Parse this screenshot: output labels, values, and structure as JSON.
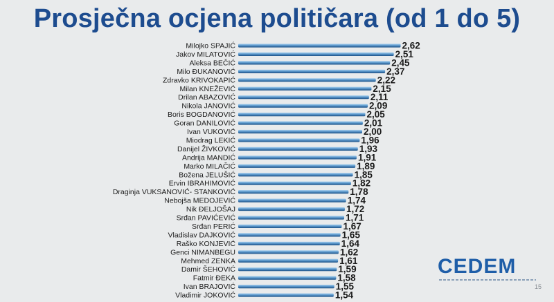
{
  "title": "Prosječna ocjena političara (od 1 do 5)",
  "logo_text": "CEDEM",
  "page_number": "15",
  "colors": {
    "title": "#1d4c8f",
    "bar_light": "#8fc0e6",
    "bar_dark": "#1e5d97",
    "background": "#e9ebec"
  },
  "chart_data": {
    "type": "bar",
    "orientation": "horizontal",
    "title": "Prosječna ocjena političara (od 1 do 5)",
    "categories": [
      "Milojko SPAJIĆ",
      "Jakov MILATOVIĆ",
      "Aleksa BEČIĆ",
      "Milo ĐUKANOVIĆ",
      "Zdravko KRIVOKAPIĆ",
      "Milan KNEŽEVIĆ",
      "Drilan ABAZOVIĆ",
      "Nikola JANOVIĆ",
      "Boris BOGDANOVIĆ",
      "Goran DANILOVIĆ",
      "Ivan VUKOVIĆ",
      "Miodrag LEKIĆ",
      "Danijel ŽIVKOVIĆ",
      "Andrija MANDIĆ",
      "Marko MILAČIĆ",
      "Božena JELUŠIĆ",
      "Ervin IBRAHIMOVIĆ",
      "Draginja VUKSANOVIĆ- STANKOVIĆ",
      "Nebojša MEDOJEVIĆ",
      "Nik ĐELJOŠAJ",
      "Srđan PAVIĆEVIĆ",
      "Srđan PERIĆ",
      "Vladislav DAJKOVIĆ",
      "Raško KONJEVIĆ",
      "Genci NIMANBEGU",
      "Mehmed ZENKA",
      "Damir ŠEHOVIĆ",
      "Fatmir ĐEKA",
      "Ivan BRAJOVIĆ",
      "Vladimir JOKOVIĆ"
    ],
    "values": [
      2.62,
      2.51,
      2.45,
      2.37,
      2.22,
      2.15,
      2.11,
      2.09,
      2.05,
      2.01,
      2.0,
      1.96,
      1.93,
      1.91,
      1.89,
      1.85,
      1.82,
      1.78,
      1.74,
      1.72,
      1.71,
      1.67,
      1.65,
      1.64,
      1.62,
      1.61,
      1.59,
      1.58,
      1.55,
      1.54
    ],
    "value_labels": [
      "2,62",
      "2,51",
      "2,45",
      "2,37",
      "2,22",
      "2,15",
      "2,11",
      "2,09",
      "2,05",
      "2,01",
      "2,00",
      "1,96",
      "1,93",
      "1,91",
      "1,89",
      "1,85",
      "1,82",
      "1,78",
      "1,74",
      "1,72",
      "1,71",
      "1,67",
      "1,65",
      "1,64",
      "1,62",
      "1,61",
      "1,59",
      "1,58",
      "1,55",
      "1,54"
    ],
    "grid": false,
    "legend": "none"
  }
}
